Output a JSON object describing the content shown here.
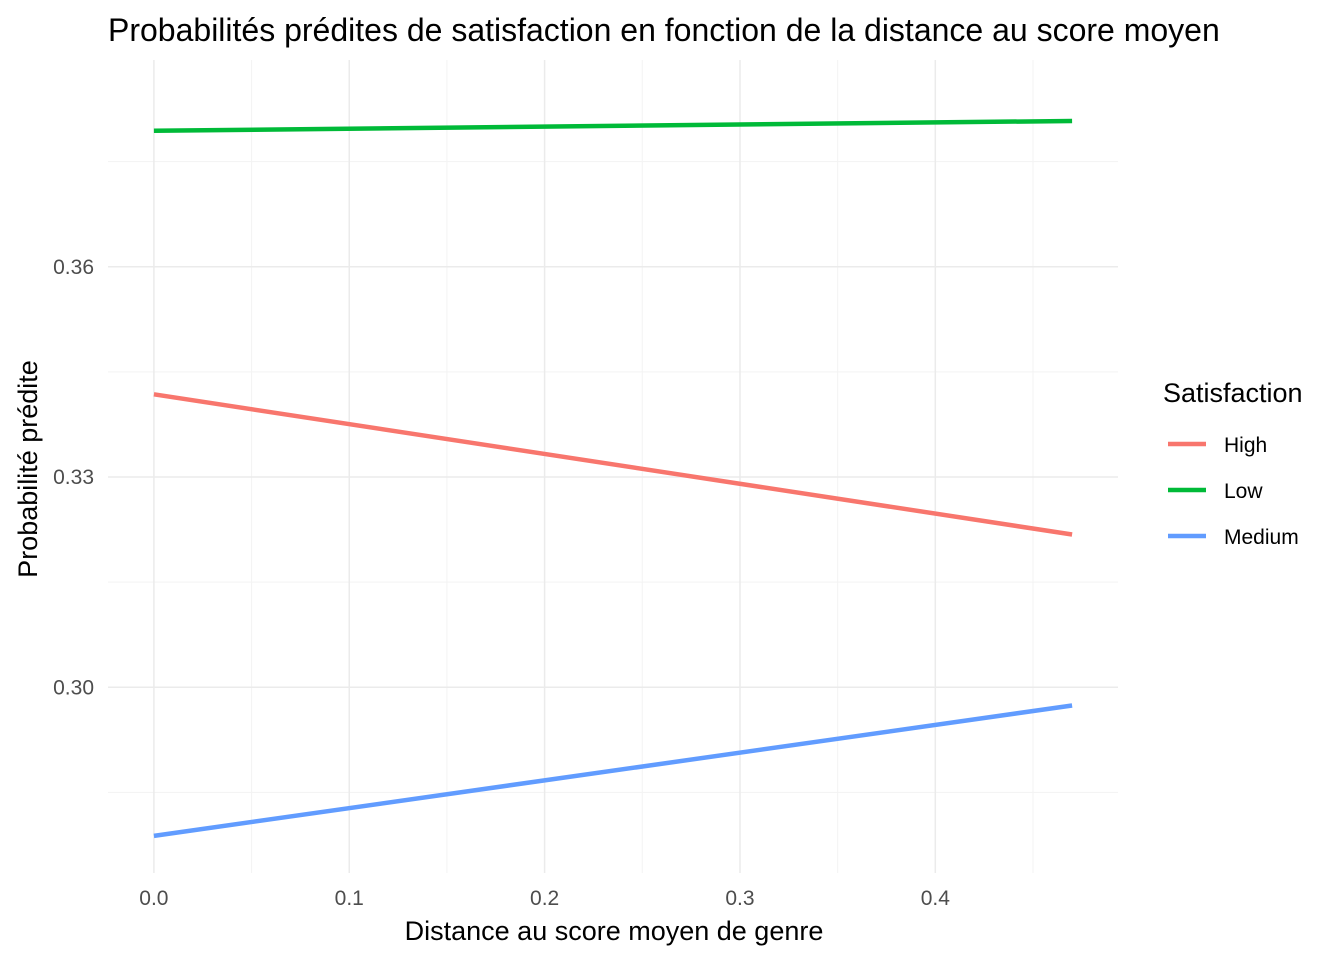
{
  "chart_data": {
    "type": "line",
    "title": "Probabilités prédites de satisfaction en fonction de la distance au score moyen",
    "xlabel": "Distance au score moyen de genre",
    "ylabel": "Probabilité prédite",
    "xlim": [
      -0.0235,
      0.4935
    ],
    "ylim": [
      0.2735,
      0.3895
    ],
    "x_ticks": [
      0.0,
      0.1,
      0.2,
      0.3,
      0.4
    ],
    "x_tick_labels": [
      "0.0",
      "0.1",
      "0.2",
      "0.3",
      "0.4"
    ],
    "y_ticks": [
      0.3,
      0.33,
      0.36
    ],
    "y_tick_labels": [
      "0.30",
      "0.33",
      "0.36"
    ],
    "grid": true,
    "legend": {
      "title": "Satisfaction",
      "placement": "right"
    },
    "series": [
      {
        "name": "High",
        "color": "#F8766D",
        "x": [
          0.0,
          0.47
        ],
        "y": [
          0.3418,
          0.3218
        ]
      },
      {
        "name": "Low",
        "color": "#00BA38",
        "x": [
          0.0,
          0.47
        ],
        "y": [
          0.3794,
          0.3808
        ]
      },
      {
        "name": "Medium",
        "color": "#619CFF",
        "x": [
          0.0,
          0.47
        ],
        "y": [
          0.2788,
          0.2974
        ]
      }
    ]
  }
}
